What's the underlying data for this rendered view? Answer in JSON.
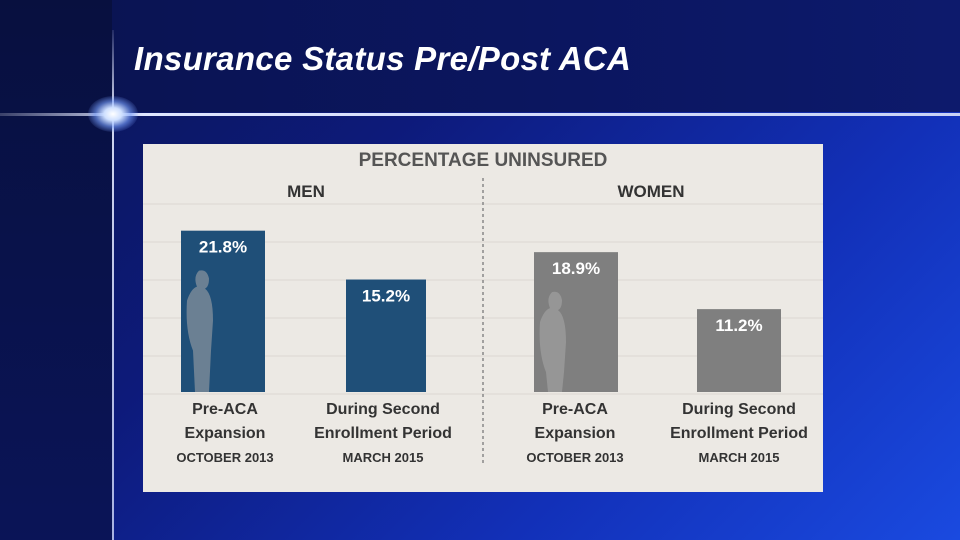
{
  "slide": {
    "title": "Insurance Status Pre/Post ACA"
  },
  "chart_data": {
    "type": "bar",
    "title": "PERCENTAGE UNINSURED",
    "groups": [
      "MEN",
      "WOMEN"
    ],
    "categories": [
      {
        "label": "Pre-ACA Expansion",
        "date": "OCTOBER 2013"
      },
      {
        "label": "During Second Enrollment Period",
        "date": "MARCH 2015"
      }
    ],
    "series": [
      {
        "name": "MEN",
        "values": [
          21.8,
          15.2
        ],
        "labels": [
          "21.8%",
          "15.2%"
        ]
      },
      {
        "name": "WOMEN",
        "values": [
          18.9,
          11.2
        ],
        "labels": [
          "18.9%",
          "11.2%"
        ]
      }
    ],
    "bars": [
      {
        "group": "MEN",
        "value": 21.8,
        "label": "21.8%",
        "cat": [
          "Pre-ACA",
          "Expansion"
        ],
        "date": "OCTOBER 2013"
      },
      {
        "group": "MEN",
        "value": 15.2,
        "label": "15.2%",
        "cat": [
          "During Second",
          "Enrollment Period"
        ],
        "date": "MARCH 2015"
      },
      {
        "group": "WOMEN",
        "value": 18.9,
        "label": "18.9%",
        "cat": [
          "Pre-ACA",
          "Expansion"
        ],
        "date": "OCTOBER 2013"
      },
      {
        "group": "WOMEN",
        "value": 11.2,
        "label": "11.2%",
        "cat": [
          "During Second",
          "Enrollment Period"
        ],
        "date": "MARCH 2015"
      }
    ],
    "ylim": [
      0,
      25
    ],
    "colors": {
      "men": "#1f4f78",
      "women": "#7f7f7f",
      "text": "#333333",
      "paper": "#ece9e4"
    }
  }
}
